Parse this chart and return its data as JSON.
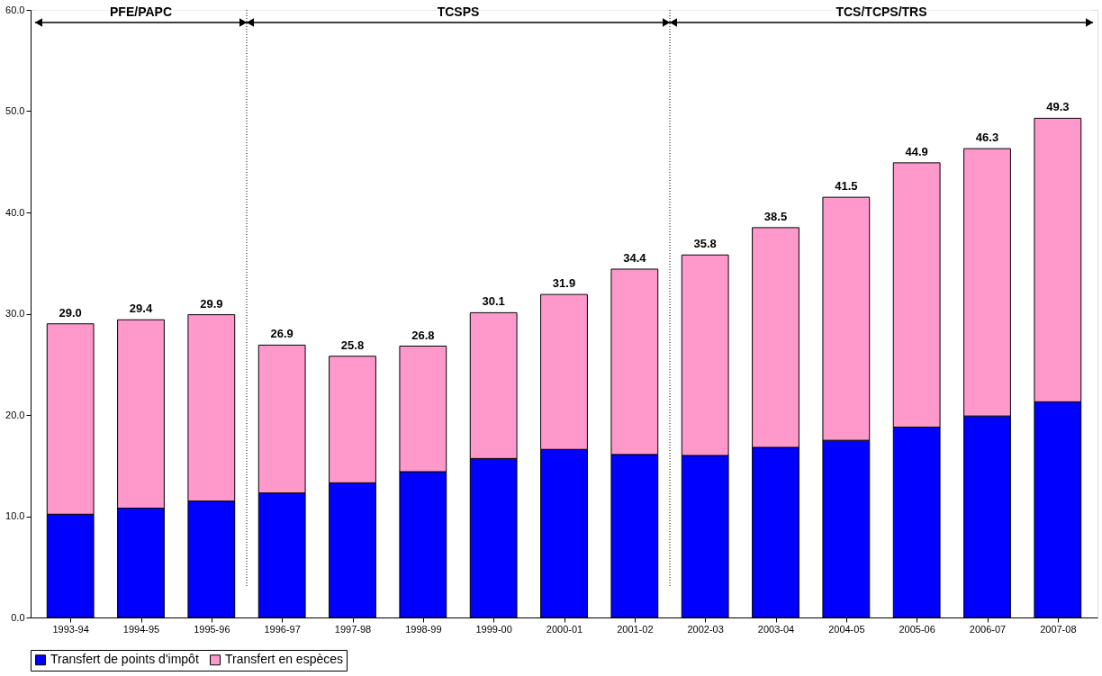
{
  "chart_data": {
    "type": "bar",
    "stacked": true,
    "categories": [
      "1993-94",
      "1994-95",
      "1995-96",
      "1996-97",
      "1997-98",
      "1998-99",
      "1999-00",
      "2000-01",
      "2001-02",
      "2002-03",
      "2003-04",
      "2004-05",
      "2005-06",
      "2006-07",
      "2007-08"
    ],
    "series": [
      {
        "name": "Transfert de points d'impôt",
        "color": "#0000ff",
        "values": [
          10.2,
          10.8,
          11.5,
          12.3,
          13.3,
          14.4,
          15.7,
          16.6,
          16.1,
          16.0,
          16.8,
          17.5,
          18.8,
          19.9,
          21.3
        ]
      },
      {
        "name": "Transfert en espèces",
        "color": "#ff99cc",
        "values": [
          18.8,
          18.6,
          18.4,
          14.6,
          12.5,
          12.4,
          14.4,
          15.3,
          18.3,
          19.8,
          21.7,
          24.0,
          26.1,
          26.4,
          28.0
        ]
      }
    ],
    "totals": [
      "29.0",
      "29.4",
      "29.9",
      "26.9",
      "25.8",
      "26.8",
      "30.1",
      "31.9",
      "34.4",
      "35.8",
      "38.5",
      "41.5",
      "44.9",
      "46.3",
      "49.3"
    ],
    "ylim": [
      0,
      60
    ],
    "yticks": [
      {
        "value": 0,
        "label": "0.0"
      },
      {
        "value": 10,
        "label": "10.0"
      },
      {
        "value": 20,
        "label": "20.0"
      },
      {
        "value": 30,
        "label": "30.0"
      },
      {
        "value": 40,
        "label": "40.0"
      },
      {
        "value": 50,
        "label": "50.0"
      },
      {
        "value": 60,
        "label": "60.0"
      }
    ],
    "bands": [
      {
        "axis": "x",
        "from": "1993-94",
        "to": "1995-96",
        "label": "PFE/PAPC"
      },
      {
        "axis": "x",
        "from": "1996-97",
        "to": "2001-02",
        "label": "TCSPS"
      },
      {
        "axis": "x",
        "from": "2002-03",
        "to": "2007-08",
        "label": "TCS/TCPS/TRS"
      }
    ],
    "grid": false,
    "legend": "bottom"
  }
}
